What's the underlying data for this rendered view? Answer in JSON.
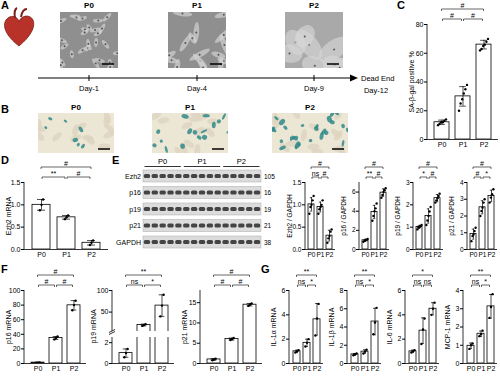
{
  "panel_a": {
    "panel": "A",
    "stages": [
      "P0",
      "P1",
      "P2"
    ],
    "days": [
      "Day-1",
      "Day-4",
      "Day-9"
    ],
    "end_label": "Dead End",
    "end_day": "Day-12"
  },
  "panel_b": {
    "panel": "B",
    "stages": [
      "P0",
      "P1",
      "P2"
    ]
  },
  "blot": {
    "panel": "E",
    "groups": [
      "P0",
      "P1",
      "P2"
    ],
    "bands": [
      {
        "label": "Ezh2",
        "kda": 105
      },
      {
        "label": "p16",
        "kda": 16
      },
      {
        "label": "p19",
        "kda": 19
      },
      {
        "label": "p21",
        "kda": 21
      },
      {
        "label": "GAPDH",
        "kda": 38
      }
    ]
  },
  "chart_data": [
    {
      "type": "bar",
      "panel": "C",
      "ylabel": "SA-β-gal positive %",
      "color": "#ffffff",
      "categories": [
        "P0",
        "P1",
        "P2"
      ],
      "values": [
        12,
        30,
        66
      ],
      "errors": [
        1.5,
        6.8,
        3
      ],
      "points": [
        [
          10,
          11,
          12,
          12,
          13,
          14
        ],
        [
          20,
          25,
          28,
          32,
          35,
          38
        ],
        [
          62,
          63,
          65,
          66,
          68,
          70
        ]
      ],
      "ylim": [
        0,
        80
      ],
      "yticks": [
        0,
        20,
        40,
        60,
        80
      ],
      "comparisons": [
        {
          "from": "P0",
          "to": "P1",
          "label": "#"
        },
        {
          "from": "P1",
          "to": "P2",
          "label": "#"
        },
        {
          "from": "P0",
          "to": "P2",
          "label": "#"
        }
      ]
    },
    {
      "type": "bar",
      "panel": "D",
      "ylabel": "Ezh2 mRNA",
      "color": "#ffffff",
      "categories": [
        "P0",
        "P1",
        "P2"
      ],
      "values": [
        1.0,
        0.72,
        0.15
      ],
      "errors": [
        0.12,
        0.04,
        0.05
      ],
      "points": [
        [
          0.88,
          1.0,
          1.12
        ],
        [
          0.68,
          0.72,
          0.76
        ],
        [
          0.1,
          0.15,
          0.2
        ]
      ],
      "ylim": [
        0,
        1.5
      ],
      "yticks": [
        {
          "value": 0,
          "label": "0.0"
        },
        {
          "value": 0.5,
          "label": "0.5"
        },
        {
          "value": 1,
          "label": "1.0"
        },
        {
          "value": 1.5,
          "label": "1.5"
        }
      ],
      "comparisons": [
        {
          "from": "P0",
          "to": "P1",
          "label": "**"
        },
        {
          "from": "P1",
          "to": "P2",
          "label": "#"
        },
        {
          "from": "P0",
          "to": "P2",
          "label": "#"
        }
      ]
    },
    {
      "type": "bar",
      "ylabel": "Ezh2 / GAPDH",
      "color": "#ffffff",
      "categories": [
        "P0",
        "P1",
        "P2"
      ],
      "values": [
        1.01,
        0.95,
        0.31
      ],
      "errors": [
        0.15,
        0.11,
        0.12
      ],
      "points": [
        [
          0.8,
          0.95,
          1.0,
          1.1,
          1.2
        ],
        [
          0.8,
          0.9,
          0.95,
          1.0,
          1.1
        ],
        [
          0.15,
          0.25,
          0.3,
          0.4,
          0.45
        ]
      ],
      "ylim": [
        0,
        1.5
      ],
      "yticks": [
        {
          "value": 0,
          "label": "0.0"
        },
        {
          "value": 0.5,
          "label": "0.5"
        },
        {
          "value": 1,
          "label": "1.0"
        },
        {
          "value": 1.5,
          "label": "1.5"
        }
      ],
      "comparisons": [
        {
          "from": "P0",
          "to": "P1",
          "label": "ns"
        },
        {
          "from": "P1",
          "to": "P2",
          "label": "#"
        },
        {
          "from": "P0",
          "to": "P2",
          "label": "#"
        }
      ]
    },
    {
      "type": "bar",
      "ylabel": "p16 / GAPDH",
      "color": "#ffffff",
      "categories": [
        "P0",
        "P1",
        "P2"
      ],
      "values": [
        0.96,
        3.92,
        5.94
      ],
      "errors": [
        0.11,
        0.69,
        0.39
      ],
      "points": [
        [
          0.8,
          0.9,
          1.0,
          1.0,
          1.1
        ],
        [
          3.0,
          3.5,
          4.0,
          4.3,
          4.8
        ],
        [
          5.4,
          5.7,
          6.0,
          6.2,
          6.4
        ]
      ],
      "ylim": [
        0,
        7
      ],
      "yticks": [
        0,
        2,
        4,
        6
      ],
      "comparisons": [
        {
          "from": "P0",
          "to": "P1",
          "label": "**"
        },
        {
          "from": "P1",
          "to": "P2",
          "label": "#"
        },
        {
          "from": "P0",
          "to": "P2",
          "label": "#"
        }
      ]
    },
    {
      "type": "bar",
      "ylabel": "p19 / GAPDH",
      "color": "#ffffff",
      "categories": [
        "P0",
        "P1",
        "P2"
      ],
      "values": [
        1.01,
        1.5,
        2.3
      ],
      "errors": [
        0.07,
        0.32,
        0.16
      ],
      "points": [
        [
          0.9,
          1.0,
          1.0,
          1.05,
          1.1
        ],
        [
          1.1,
          1.3,
          1.5,
          1.7,
          1.9
        ],
        [
          2.1,
          2.2,
          2.3,
          2.4,
          2.5
        ]
      ],
      "ylim": [
        0,
        3
      ],
      "yticks": [
        0,
        1,
        2,
        3
      ],
      "comparisons": [
        {
          "from": "P0",
          "to": "P1",
          "label": "*"
        },
        {
          "from": "P1",
          "to": "P2",
          "label": "#"
        },
        {
          "from": "P0",
          "to": "P2",
          "label": "#"
        }
      ]
    },
    {
      "type": "bar",
      "ylabel": "p21 / GAPDH",
      "color": "#ffffff",
      "categories": [
        "P0",
        "P1",
        "P2"
      ],
      "values": [
        0.92,
        2.52,
        3.2
      ],
      "errors": [
        0.3,
        0.39,
        0.34
      ],
      "points": [
        [
          0.5,
          0.8,
          0.9,
          1.1,
          1.3
        ],
        [
          2.0,
          2.3,
          2.5,
          2.8,
          3.0
        ],
        [
          2.8,
          3.1,
          3.3,
          3.6
        ]
      ],
      "ylim": [
        0,
        4
      ],
      "yticks": [
        0,
        1,
        2,
        3,
        4
      ],
      "comparisons": [
        {
          "from": "P0",
          "to": "P1",
          "label": "#"
        },
        {
          "from": "P1",
          "to": "P2",
          "label": "*"
        },
        {
          "from": "P0",
          "to": "P2",
          "label": "#"
        }
      ]
    },
    {
      "type": "bar",
      "panel": "F",
      "ylabel": "p16 mRNA",
      "color": "#ffffff",
      "categories": [
        "P0",
        "P1",
        "P2"
      ],
      "values": [
        1.2,
        35,
        79.7
      ],
      "errors": [
        0.2,
        2,
        6.5
      ],
      "points": [
        [
          1,
          1.2,
          1.4
        ],
        [
          33,
          35,
          37
        ],
        [
          73,
          80,
          86
        ]
      ],
      "ylim": [
        0,
        100
      ],
      "yticks": [
        0,
        20,
        40,
        60,
        80,
        100
      ],
      "comparisons": [
        {
          "from": "P0",
          "to": "P1",
          "label": "#"
        },
        {
          "from": "P1",
          "to": "P2",
          "label": "#"
        },
        {
          "from": "P0",
          "to": "P2",
          "label": "#"
        }
      ]
    },
    {
      "type": "bar",
      "ylabel": "p19 mRNA",
      "color": "#ffffff",
      "categories": [
        "P0",
        "P1",
        "P2"
      ],
      "values": [
        1.0,
        20,
        65
      ],
      "errors": [
        0.4,
        2,
        25
      ],
      "points": [
        [
          0.6,
          1.0,
          1.4
        ],
        [
          18,
          20,
          22
        ],
        [
          40,
          65,
          90
        ]
      ],
      "ylim": [
        0,
        100
      ],
      "yticks": [
        0,
        2,
        50,
        100
      ],
      "y_break": [
        2.5,
        5
      ],
      "comparisons": [
        {
          "from": "P0",
          "to": "P1",
          "label": "ns"
        },
        {
          "from": "P1",
          "to": "P2",
          "label": "*"
        },
        {
          "from": "P0",
          "to": "P2",
          "label": "**"
        }
      ]
    },
    {
      "type": "bar",
      "ylabel": "p21 mRNA",
      "color": "#ffffff",
      "categories": [
        "P0",
        "P1",
        "P2"
      ],
      "values": [
        1.0,
        6.03,
        14.5
      ],
      "errors": [
        0.2,
        0.25,
        0.3
      ],
      "points": [
        [
          0.8,
          1.0,
          1.2
        ],
        [
          5.8,
          6.0,
          6.3
        ],
        [
          14.2,
          14.5,
          14.8
        ]
      ],
      "ylim": [
        0,
        18
      ],
      "yticks": [
        0,
        5,
        10,
        15
      ],
      "comparisons": [
        {
          "from": "P0",
          "to": "P1",
          "label": "#"
        },
        {
          "from": "P1",
          "to": "P2",
          "label": "#"
        },
        {
          "from": "P0",
          "to": "P2",
          "label": "#"
        }
      ]
    },
    {
      "type": "bar",
      "panel": "G",
      "ylabel": "IL-1α mRNA",
      "color": "#ffffff",
      "categories": [
        "P0",
        "P1",
        "P2"
      ],
      "values": [
        1.0,
        1.7,
        3.63
      ],
      "errors": [
        0.1,
        0.3,
        1.3
      ],
      "points": [
        [
          0.9,
          1.0,
          1.1
        ],
        [
          1.4,
          1.7,
          2.0
        ],
        [
          2.3,
          3.7,
          4.9
        ]
      ],
      "ylim": [
        0,
        6
      ],
      "yticks": [
        0,
        2,
        4,
        6
      ],
      "comparisons": [
        {
          "from": "P0",
          "to": "P1",
          "label": "ns"
        },
        {
          "from": "P1",
          "to": "P2",
          "label": "*"
        },
        {
          "from": "P0",
          "to": "P2",
          "label": "**"
        }
      ]
    },
    {
      "type": "bar",
      "ylabel": "IL-1β mRNA",
      "color": "#ffffff",
      "categories": [
        "P0",
        "P1",
        "P2"
      ],
      "values": [
        1.0,
        1.3,
        4.6
      ],
      "errors": [
        0.1,
        0.2,
        1.45
      ],
      "points": [
        [
          0.9,
          1.0,
          1.1
        ],
        [
          1.1,
          1.3,
          1.5
        ],
        [
          3.2,
          4.5,
          6.1
        ]
      ],
      "ylim": [
        0,
        8
      ],
      "yticks": [
        0,
        2,
        4,
        6,
        8
      ],
      "comparisons": [
        {
          "from": "P0",
          "to": "P1",
          "label": "ns"
        },
        {
          "from": "P1",
          "to": "P2",
          "label": "*"
        },
        {
          "from": "P0",
          "to": "P2",
          "label": "**"
        }
      ]
    },
    {
      "type": "bar",
      "ylabel": "IL-6 mRNA",
      "color": "#ffffff",
      "categories": [
        "P0",
        "P1",
        "P2"
      ],
      "values": [
        1.0,
        2.7,
        4.5
      ],
      "errors": [
        0.1,
        1.05,
        0.5
      ],
      "points": [
        [
          0.9,
          1.0,
          1.1
        ],
        [
          1.6,
          2.8,
          3.7
        ],
        [
          4.0,
          4.5,
          5.0
        ]
      ],
      "ylim": [
        0,
        6
      ],
      "yticks": [
        0,
        2,
        4,
        6
      ],
      "comparisons": [
        {
          "from": "P0",
          "to": "P1",
          "label": "ns"
        },
        {
          "from": "P1",
          "to": "P2",
          "label": "ns"
        },
        {
          "from": "P0",
          "to": "P2",
          "label": "*"
        }
      ]
    },
    {
      "type": "bar",
      "ylabel": "MCP-1 mRNA",
      "color": "#ffffff",
      "categories": [
        "P0",
        "P1",
        "P2"
      ],
      "values": [
        0.97,
        1.63,
        3.13
      ],
      "errors": [
        0.15,
        0.15,
        0.65
      ],
      "points": [
        [
          0.8,
          1.0,
          1.1
        ],
        [
          1.5,
          1.6,
          1.8
        ],
        [
          2.5,
          3.1,
          3.8
        ]
      ],
      "ylim": [
        0,
        4
      ],
      "yticks": [
        0,
        1,
        2,
        3,
        4
      ],
      "comparisons": [
        {
          "from": "P0",
          "to": "P1",
          "label": "ns"
        },
        {
          "from": "P1",
          "to": "P2",
          "label": "*"
        },
        {
          "from": "P0",
          "to": "P2",
          "label": "**"
        }
      ]
    }
  ]
}
